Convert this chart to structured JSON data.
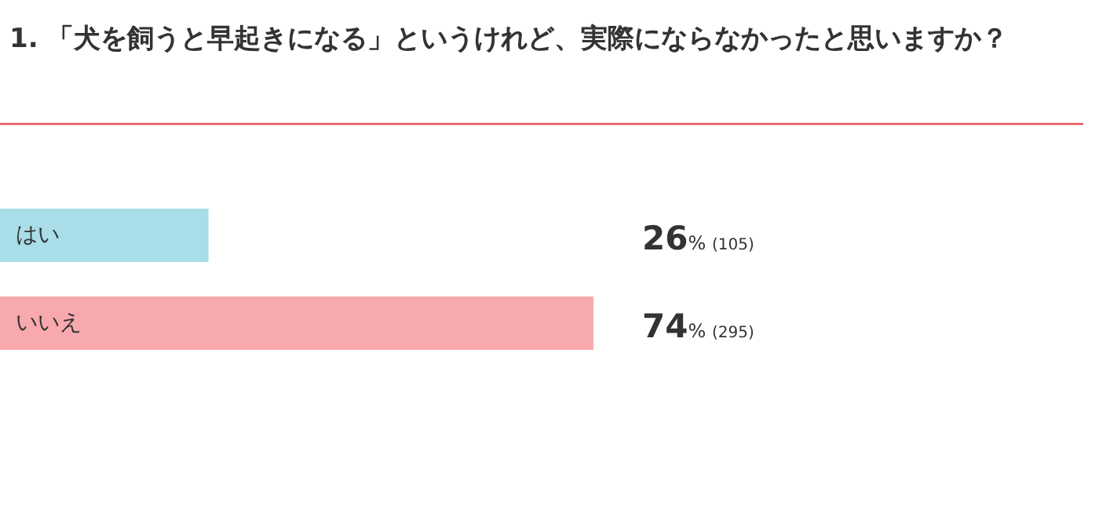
{
  "chart_data": {
    "type": "bar",
    "orientation": "horizontal",
    "title": "1. 「犬を飼うと早起きになる」というけれど、実際にならなかったと思いますか？",
    "categories": [
      "はい",
      "いいえ"
    ],
    "values": [
      26,
      74
    ],
    "colors": [
      "#a9dde8",
      "#f8a9ae"
    ],
    "value_labels": [
      "26% (105)",
      "74% (295)"
    ]
  }
}
